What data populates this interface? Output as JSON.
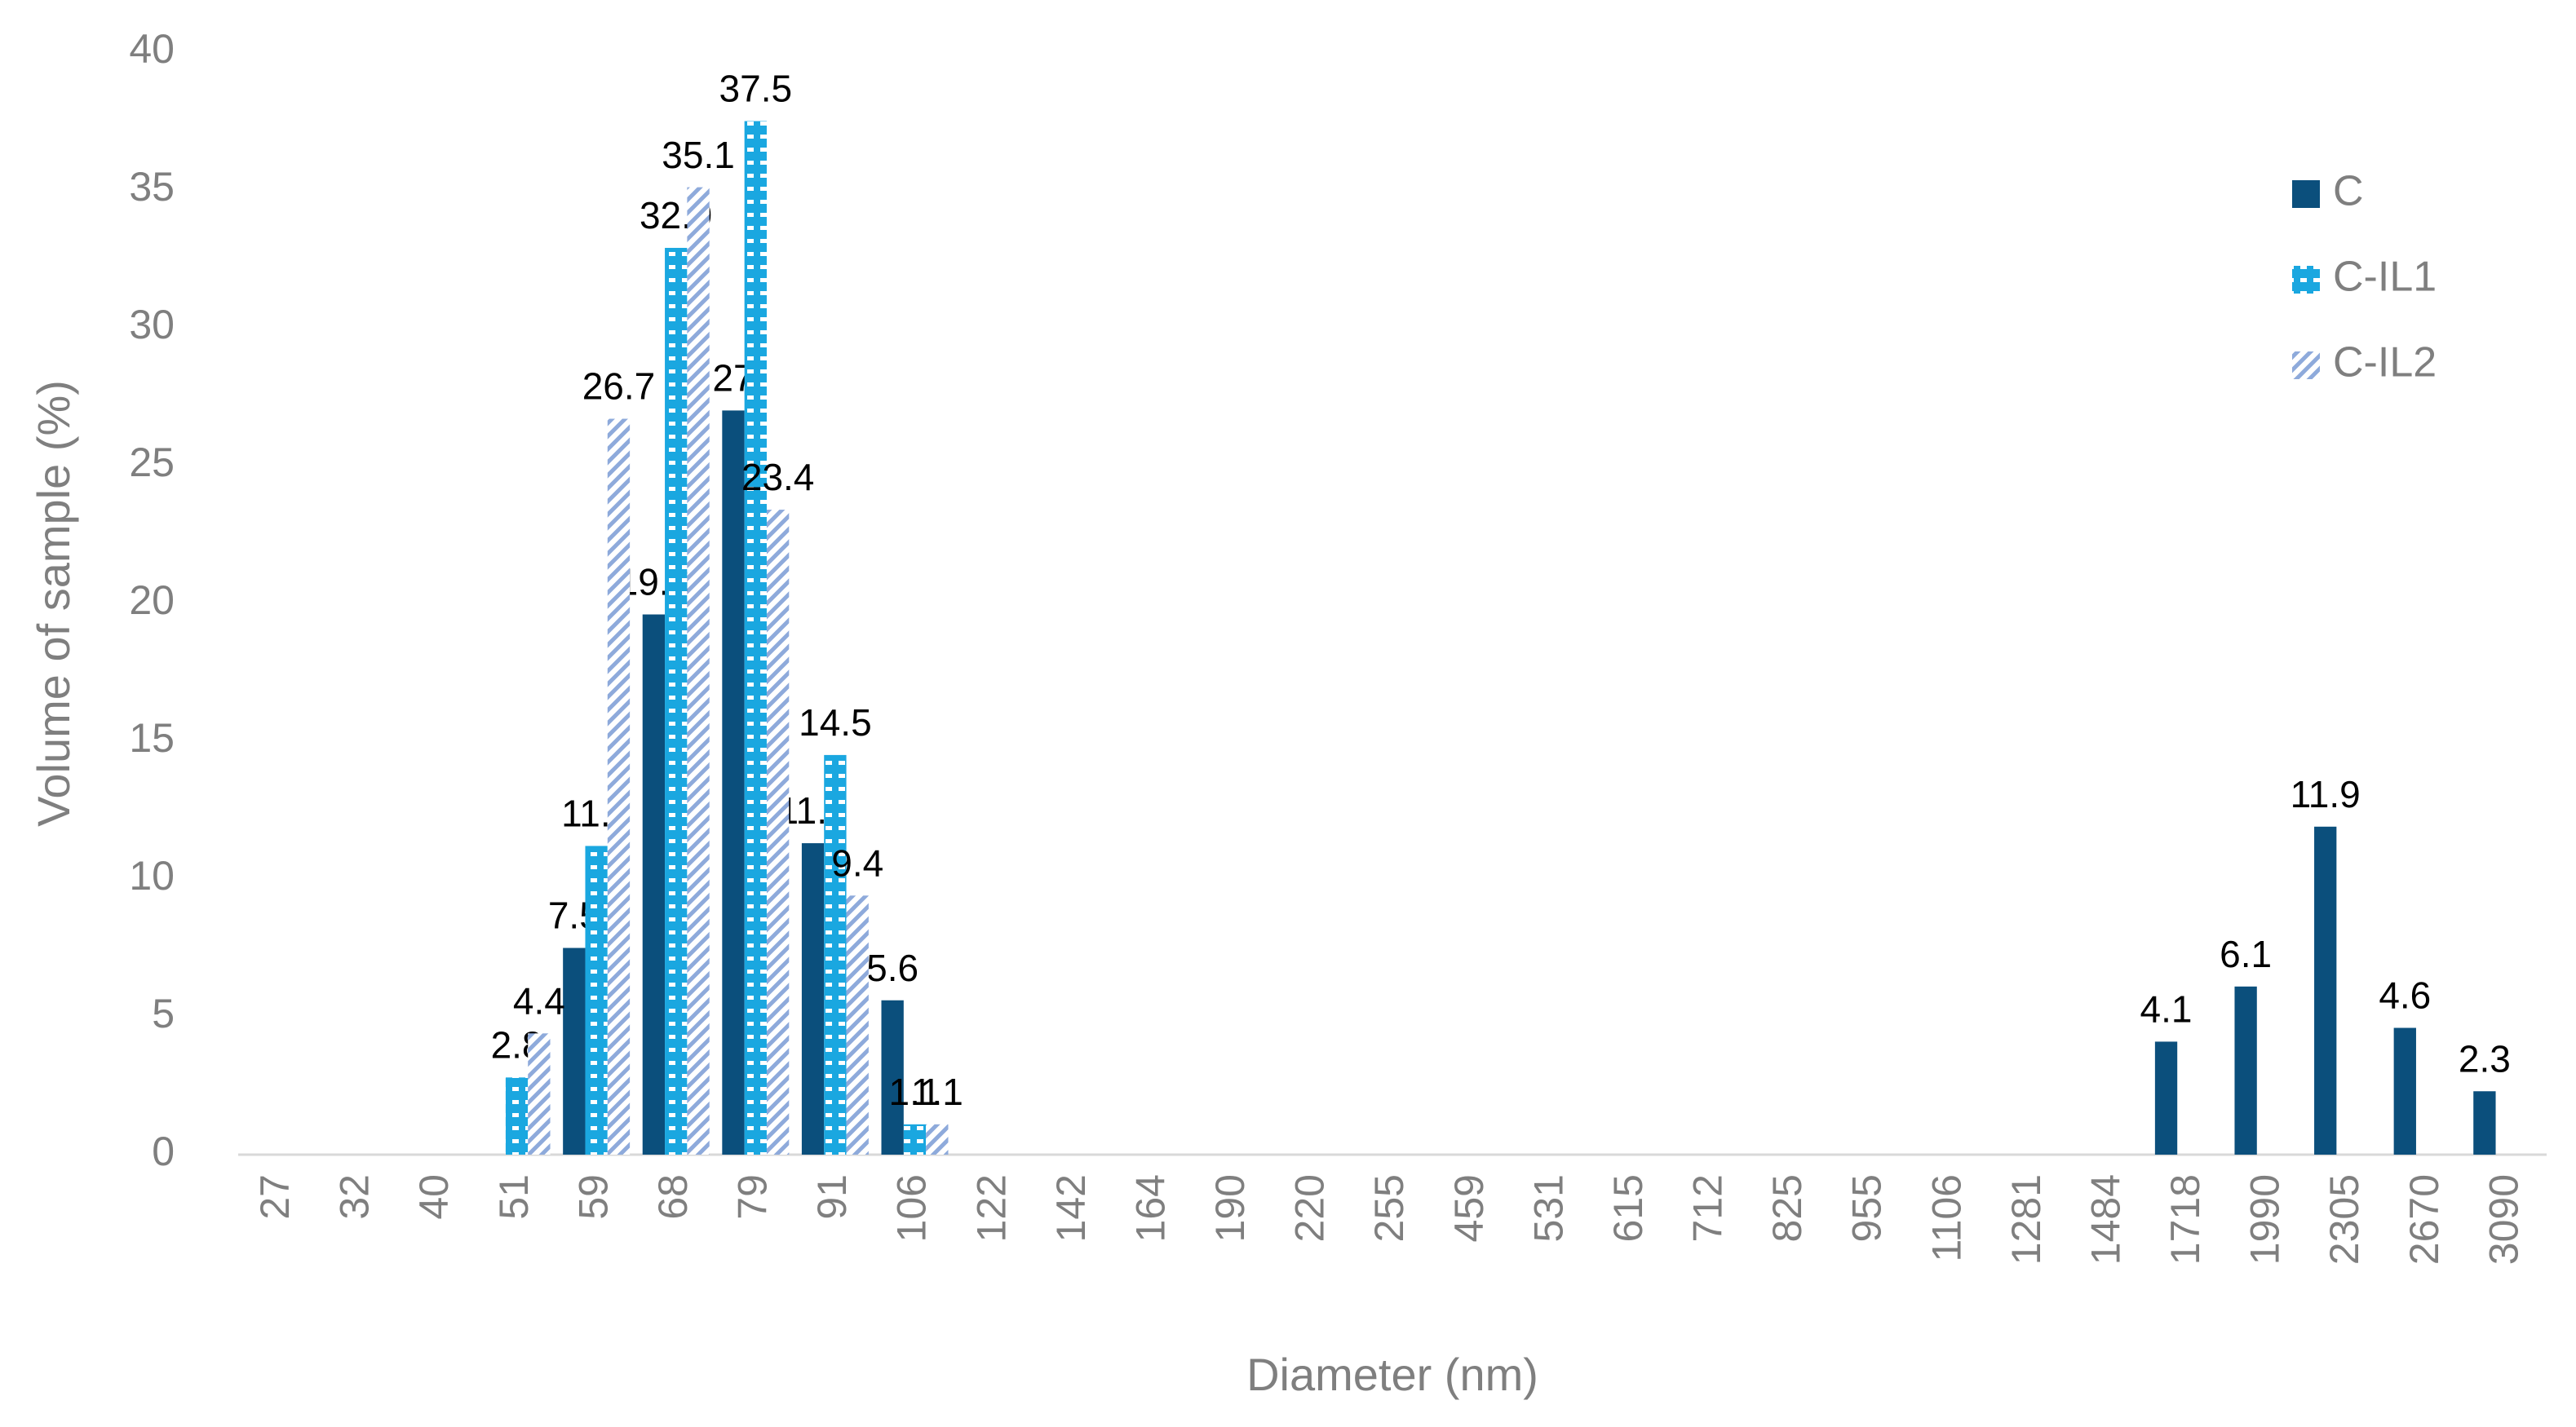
{
  "chart_data": {
    "type": "bar",
    "x_label": "Diameter (nm)",
    "y_label": "Volume of sample (%)",
    "categories": [
      "27",
      "32",
      "40",
      "51",
      "59",
      "68",
      "79",
      "91",
      "106",
      "122",
      "142",
      "164",
      "190",
      "220",
      "255",
      "459",
      "531",
      "615",
      "712",
      "825",
      "955",
      "1106",
      "1281",
      "1484",
      "1718",
      "1990",
      "2305",
      "2670",
      "3090"
    ],
    "series": [
      {
        "name": "C",
        "color": "#0b4f7c",
        "pattern": "solid",
        "values": [
          0,
          0,
          0,
          0,
          7.5,
          19.6,
          27,
          11.3,
          5.6,
          0,
          0,
          0,
          0,
          0,
          0,
          0,
          0,
          0,
          0,
          0,
          0,
          0,
          0,
          0,
          4.1,
          6.1,
          11.9,
          4.6,
          2.3
        ]
      },
      {
        "name": "C-IL1",
        "color": "#1aa7e0",
        "pattern": "dots",
        "values": [
          0,
          0,
          0,
          2.8,
          11.2,
          32.9,
          37.5,
          14.5,
          1.1,
          0,
          0,
          0,
          0,
          0,
          0,
          0,
          0,
          0,
          0,
          0,
          0,
          0,
          0,
          0,
          0,
          0,
          0,
          0,
          0
        ]
      },
      {
        "name": "C-IL2",
        "color": "#8eaadb",
        "pattern": "hatch",
        "values": [
          0,
          0,
          0,
          4.4,
          26.7,
          35.1,
          23.4,
          9.4,
          1.1,
          0,
          0,
          0,
          0,
          0,
          0,
          0,
          0,
          0,
          0,
          0,
          0,
          0,
          0,
          0,
          0,
          0,
          0,
          0,
          0
        ]
      }
    ],
    "ylim": [
      0,
      40
    ],
    "yticks": [
      0,
      5,
      10,
      15,
      20,
      25,
      30,
      35,
      40
    ],
    "grid": false,
    "legend": "top-right"
  }
}
